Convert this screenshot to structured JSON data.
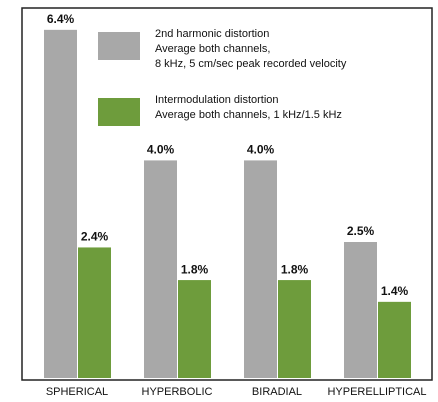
{
  "chart_data": {
    "type": "bar",
    "categories": [
      "SPHERICAL",
      "HYPERBOLIC",
      "BIRADIAL",
      "HYPERELLIPTICAL"
    ],
    "series": [
      {
        "name": [
          "2nd harmonic distortion",
          "Average both channels,",
          "8 kHz, 5 cm/sec peak recorded velocity"
        ],
        "color": "#a8a8a8",
        "values": [
          6.4,
          4.0,
          4.0,
          2.5
        ],
        "value_labels": [
          "6.4%",
          "4.0%",
          "4.0%",
          "2.5%"
        ]
      },
      {
        "name": [
          "Intermodulation distortion",
          "Average both channels, 1 kHz/1.5 kHz"
        ],
        "color": "#6e9c3c",
        "values": [
          2.4,
          1.8,
          1.8,
          1.4
        ],
        "value_labels": [
          "2.4%",
          "1.8%",
          "1.8%",
          "1.4%"
        ]
      }
    ]
  }
}
